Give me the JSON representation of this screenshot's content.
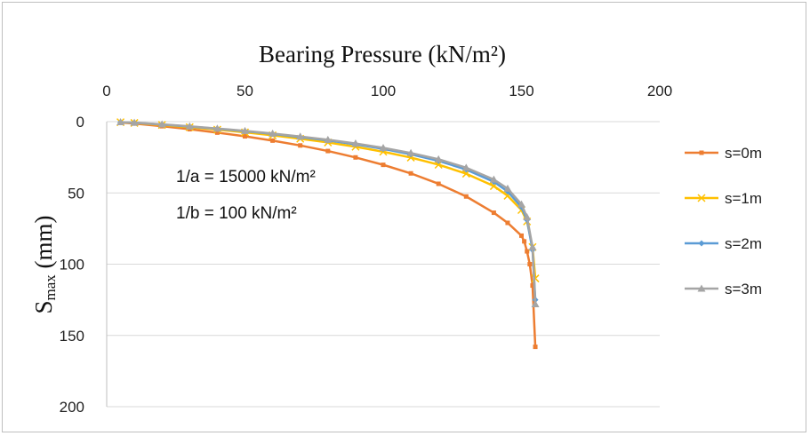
{
  "chart_data": {
    "type": "line",
    "title": "Bearing Pressure (kN/m²)",
    "ylabel_main": "S",
    "ylabel_sub": "max",
    "ylabel_unit": " (mm)",
    "xlim": [
      0,
      200
    ],
    "ylim": [
      0,
      200
    ],
    "y_inverted": true,
    "x_axis_position": "top",
    "x_ticks": [
      "0",
      "50",
      "100",
      "150",
      "200"
    ],
    "y_ticks": [
      "0",
      "50",
      "100",
      "150",
      "200"
    ],
    "grid": "horizontal",
    "legend_position": "right",
    "annotations": [
      "1/a = 15000 kN/m²",
      "1/b = 100 kN/m²"
    ],
    "series": [
      {
        "name": "s=0m",
        "color": "#ed7d31",
        "marker": "square",
        "x": [
          5,
          10,
          20,
          30,
          40,
          50,
          60,
          70,
          80,
          90,
          100,
          110,
          120,
          130,
          140,
          145,
          150,
          151,
          152,
          153,
          154,
          155
        ],
        "y": [
          0.6,
          1.3,
          3.2,
          5.3,
          7.7,
          10.3,
          13.3,
          16.7,
          20.6,
          25.1,
          30.3,
          36.3,
          43.6,
          52.5,
          63.9,
          71.0,
          80.0,
          84.0,
          91.0,
          100.0,
          115.0,
          158.0
        ]
      },
      {
        "name": "s=1m",
        "color": "#ffc000",
        "marker": "x",
        "x": [
          5,
          10,
          20,
          30,
          40,
          50,
          60,
          70,
          80,
          90,
          100,
          110,
          120,
          130,
          140,
          145,
          150,
          152,
          154,
          155
        ],
        "y": [
          0.4,
          0.9,
          2.3,
          3.9,
          5.6,
          7.5,
          9.6,
          12.0,
          14.6,
          17.6,
          21.1,
          25.2,
          30.2,
          36.5,
          45.2,
          52.0,
          62.0,
          70.0,
          88.0,
          110.0
        ]
      },
      {
        "name": "s=2m",
        "color": "#5b9bd5",
        "marker": "diamond",
        "x": [
          5,
          10,
          20,
          30,
          40,
          50,
          60,
          70,
          80,
          90,
          100,
          110,
          120,
          130,
          140,
          145,
          150,
          152,
          154,
          155
        ],
        "y": [
          0.4,
          0.8,
          2.0,
          3.4,
          5.0,
          6.7,
          8.6,
          10.8,
          13.2,
          15.9,
          19.1,
          22.9,
          27.5,
          33.6,
          42.2,
          49.0,
          60.0,
          69.0,
          90.0,
          125.0
        ]
      },
      {
        "name": "s=3m",
        "color": "#a5a5a5",
        "marker": "triangle",
        "x": [
          5,
          10,
          20,
          30,
          40,
          50,
          60,
          70,
          80,
          90,
          100,
          110,
          120,
          130,
          140,
          145,
          150,
          152,
          154,
          155
        ],
        "y": [
          0.3,
          0.7,
          1.9,
          3.3,
          4.8,
          6.5,
          8.3,
          10.4,
          12.7,
          15.3,
          18.4,
          22.0,
          26.4,
          32.3,
          40.6,
          47.0,
          58.0,
          67.0,
          88.0,
          128.0
        ]
      }
    ]
  }
}
